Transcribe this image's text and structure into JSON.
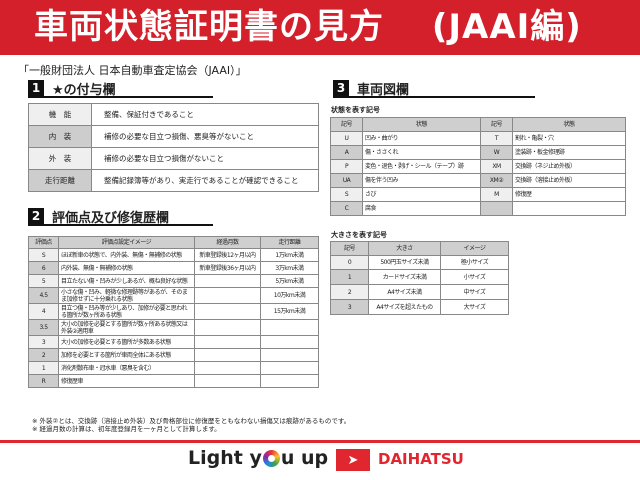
{
  "header": {
    "title": "車両状態証明書の見方　 (JAAI編)",
    "subtitle": "「一般財団法人 日本自動車査定協会（JAAI）」"
  },
  "section1": {
    "num": "1",
    "title": "★の付与欄",
    "rows": [
      {
        "label": "機　能",
        "text": "整備、保証付きであること"
      },
      {
        "label": "内　装",
        "text": "補修の必要な目立つ損傷、悪臭等がないこと"
      },
      {
        "label": "外　装",
        "text": "補修の必要な目立つ損傷がないこと"
      },
      {
        "label": "走行距離",
        "text": "整備記録簿等があり、実走行であることが確認できること"
      }
    ]
  },
  "section2": {
    "num": "2",
    "title": "評価点及び修復歴欄",
    "headers": [
      "評価点",
      "評価点設定イメージ",
      "経過月数",
      "走行距離"
    ],
    "rows": [
      [
        "S",
        "ほぼ新車の状態で、内外装、無傷・無補修の状態",
        "新車登録後12ヶ月以内",
        "1万km未満"
      ],
      [
        "6",
        "内外装、無傷・無補修の状態",
        "新車登録後36ヶ月以内",
        "3万km未満"
      ],
      [
        "5",
        "目立たない傷・凹みが少しあるが、概ね良好な状態",
        "",
        "5万km未満"
      ],
      [
        "4.5",
        "小さな傷・凹み、軽微な修理跡等があるが、そのまま加修せずに十分乗れる状態",
        "",
        "10万km未満"
      ],
      [
        "4",
        "目立つ傷・凹み等が少しあり、加修が必要と思われる箇所が数ヶ所ある状態",
        "",
        "15万km未満"
      ],
      [
        "3.5",
        "大小の加修を必要とする箇所が数ヶ所ある状態又は外装②適用車",
        "",
        ""
      ],
      [
        "3",
        "大小の加修を必要とする箇所が多数ある状態",
        "",
        ""
      ],
      [
        "2",
        "加修を必要とする箇所が車両全体にある状態",
        "",
        ""
      ],
      [
        "1",
        "消化剤散布車・冠水車（悪臭を含む）",
        "",
        ""
      ],
      [
        "R",
        "修復歴車",
        "",
        ""
      ]
    ],
    "notes": [
      "※ 外装②とは、交換跡（溶接止め外装）及び骨格部位に修復歴をともなわない損傷又は痕跡があるものです。",
      "※ 経過月数の計算は、初年度登録月を一ヶ月として計算します。"
    ]
  },
  "section3": {
    "num": "3",
    "title": "車両図欄",
    "state_caption": "状態を表す記号",
    "state_headers": [
      "記号",
      "状態",
      "記号",
      "状態"
    ],
    "state_rows": [
      [
        "U",
        "凹み・曲がり",
        "T",
        "割れ・亀裂・穴"
      ],
      [
        "A",
        "傷・ささくれ",
        "W",
        "塗装跡・板金修理跡"
      ],
      [
        "P",
        "変色・退色・剥げ・シール（テープ）跡",
        "XM",
        "交換跡（ネジ止め外板）"
      ],
      [
        "UA",
        "傷を伴う凹み",
        "XM②",
        "交換跡（溶接止め外板）"
      ],
      [
        "S",
        "さび",
        "M",
        "修復歴"
      ],
      [
        "C",
        "腐食",
        "",
        ""
      ]
    ],
    "size_caption": "大きさを表す記号",
    "size_headers": [
      "記号",
      "大きさ",
      "イメージ"
    ],
    "size_rows": [
      [
        "0",
        "500円玉サイズ未満",
        "極小サイズ"
      ],
      [
        "1",
        "カードサイズ未満",
        "小サイズ"
      ],
      [
        "2",
        "A4サイズ未満",
        "中サイズ"
      ],
      [
        "3",
        "A4サイズを超えたもの",
        "大サイズ"
      ]
    ]
  },
  "footer": {
    "slogan_pre": "Light y",
    "slogan_post": "u up",
    "brand": "DAIHATSU"
  },
  "colors": {
    "brand_red": "#d3202a"
  }
}
